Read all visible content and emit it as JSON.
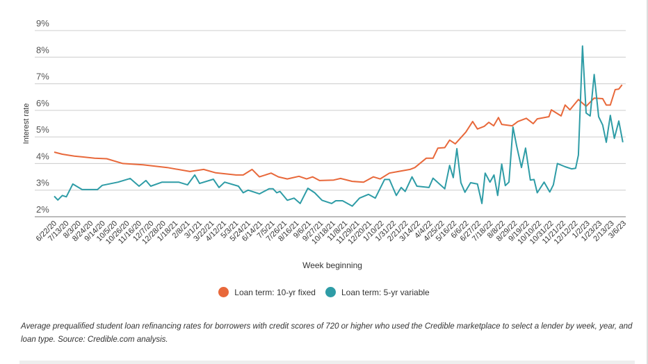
{
  "chart_data": {
    "type": "line",
    "title": "",
    "xlabel": "Week beginning",
    "ylabel": "Interest rate",
    "ylim": [
      2,
      9
    ],
    "y_ticks": [
      "2%",
      "3%",
      "4%",
      "5%",
      "6%",
      "7%",
      "8%",
      "9%"
    ],
    "grid": true,
    "legend_position": "bottom-center",
    "x_unit": "weeks since 6/22/20",
    "xlim": [
      0,
      141
    ],
    "x_tick_labels": [
      "6/22/20",
      "7/13/20",
      "8/3/20",
      "8/24/20",
      "9/14/20",
      "10/5/20",
      "10/26/20",
      "11/16/20",
      "12/7/20",
      "12/28/20",
      "1/18/21",
      "2/8/21",
      "3/1/21",
      "3/22/21",
      "4/12/21",
      "5/3/21",
      "5/24/21",
      "6/14/21",
      "7/5/21",
      "7/26/21",
      "8/16/21",
      "9/6/21",
      "9/27/21",
      "10/18/21",
      "11/8/21",
      "11/29/21",
      "12/20/21",
      "1/10/22",
      "1/31/22",
      "2/21/22",
      "3/14/22",
      "4/4/22",
      "4/25/22",
      "5/16/22",
      "6/6/22",
      "6/27/22",
      "7/18/22",
      "8/8/22",
      "8/29/22",
      "9/19/22",
      "10/10/22",
      "10/31/22",
      "11/21/22",
      "12/12/22",
      "1/2/23",
      "1/23/23",
      "2/13/23",
      "3/6/23"
    ],
    "series": [
      {
        "name": "Loan term: 10-yr fixed",
        "color": "#E8683A",
        "points": [
          [
            0,
            4.43
          ],
          [
            2,
            4.35
          ],
          [
            5,
            4.28
          ],
          [
            7,
            4.25
          ],
          [
            10,
            4.2
          ],
          [
            13,
            4.18
          ],
          [
            17,
            4.0
          ],
          [
            22,
            3.95
          ],
          [
            28,
            3.85
          ],
          [
            33.6,
            3.7
          ],
          [
            37,
            3.78
          ],
          [
            40,
            3.65
          ],
          [
            45,
            3.57
          ],
          [
            46.8,
            3.57
          ],
          [
            49,
            3.78
          ],
          [
            50.8,
            3.5
          ],
          [
            53.7,
            3.64
          ],
          [
            55.5,
            3.5
          ],
          [
            57.7,
            3.42
          ],
          [
            60.6,
            3.52
          ],
          [
            62.5,
            3.42
          ],
          [
            64,
            3.5
          ],
          [
            65.7,
            3.36
          ],
          [
            69.2,
            3.38
          ],
          [
            70.9,
            3.44
          ],
          [
            73.8,
            3.33
          ],
          [
            76.6,
            3.3
          ],
          [
            79,
            3.5
          ],
          [
            80.7,
            3.42
          ],
          [
            83,
            3.64
          ],
          [
            85.2,
            3.7
          ],
          [
            88.1,
            3.78
          ],
          [
            89.3,
            3.85
          ],
          [
            92.1,
            4.2
          ],
          [
            93.8,
            4.2
          ],
          [
            95,
            4.58
          ],
          [
            96.7,
            4.6
          ],
          [
            97.9,
            4.88
          ],
          [
            99.3,
            4.74
          ],
          [
            101.9,
            5.18
          ],
          [
            103.6,
            5.58
          ],
          [
            104.8,
            5.3
          ],
          [
            106.5,
            5.4
          ],
          [
            107.6,
            5.55
          ],
          [
            108.8,
            5.42
          ],
          [
            110,
            5.73
          ],
          [
            110.8,
            5.47
          ],
          [
            113.4,
            5.42
          ],
          [
            114.8,
            5.58
          ],
          [
            116.9,
            5.7
          ],
          [
            118.6,
            5.5
          ],
          [
            119.6,
            5.68
          ],
          [
            122.5,
            5.76
          ],
          [
            123.1,
            6.02
          ],
          [
            125.5,
            5.79
          ],
          [
            126.5,
            6.2
          ],
          [
            127.7,
            6.02
          ],
          [
            129.8,
            6.41
          ],
          [
            131.7,
            6.15
          ],
          [
            133.7,
            6.46
          ],
          [
            135.8,
            6.44
          ],
          [
            136.7,
            6.2
          ],
          [
            137.7,
            6.2
          ],
          [
            138.9,
            6.78
          ],
          [
            139.8,
            6.8
          ],
          [
            140.6,
            6.96
          ]
        ]
      },
      {
        "name": "Loan term: 5-yr variable",
        "color": "#2E9CA6",
        "points": [
          [
            0,
            2.77
          ],
          [
            0.9,
            2.63
          ],
          [
            2,
            2.8
          ],
          [
            3,
            2.75
          ],
          [
            4.6,
            3.23
          ],
          [
            6.9,
            3.02
          ],
          [
            10.7,
            3.02
          ],
          [
            11.9,
            3.18
          ],
          [
            15.8,
            3.3
          ],
          [
            18.8,
            3.44
          ],
          [
            21,
            3.15
          ],
          [
            22.7,
            3.36
          ],
          [
            23.9,
            3.15
          ],
          [
            26.7,
            3.3
          ],
          [
            30.8,
            3.3
          ],
          [
            33,
            3.2
          ],
          [
            34.8,
            3.57
          ],
          [
            36,
            3.25
          ],
          [
            39.4,
            3.41
          ],
          [
            40.8,
            3.1
          ],
          [
            42.2,
            3.3
          ],
          [
            45.6,
            3.15
          ],
          [
            46.8,
            2.9
          ],
          [
            48,
            3.0
          ],
          [
            50.8,
            2.86
          ],
          [
            53.2,
            3.05
          ],
          [
            54.2,
            3.05
          ],
          [
            55.1,
            2.9
          ],
          [
            55.9,
            2.95
          ],
          [
            57.7,
            2.62
          ],
          [
            59.4,
            2.7
          ],
          [
            60.9,
            2.5
          ],
          [
            62.8,
            3.07
          ],
          [
            64.5,
            2.9
          ],
          [
            66.3,
            2.62
          ],
          [
            68.7,
            2.5
          ],
          [
            69.7,
            2.6
          ],
          [
            71.4,
            2.6
          ],
          [
            73.8,
            2.4
          ],
          [
            75.6,
            2.7
          ],
          [
            77.8,
            2.84
          ],
          [
            79.5,
            2.7
          ],
          [
            81.8,
            3.4
          ],
          [
            83,
            3.4
          ],
          [
            84.7,
            2.8
          ],
          [
            85.9,
            3.1
          ],
          [
            86.9,
            2.95
          ],
          [
            88.6,
            3.5
          ],
          [
            89.8,
            3.15
          ],
          [
            92.8,
            3.1
          ],
          [
            93.8,
            3.45
          ],
          [
            96.7,
            3.05
          ],
          [
            97.9,
            3.93
          ],
          [
            98.8,
            3.47
          ],
          [
            99.7,
            4.56
          ],
          [
            100.7,
            3.28
          ],
          [
            101.7,
            2.92
          ],
          [
            103.1,
            3.28
          ],
          [
            104.8,
            3.23
          ],
          [
            105.9,
            2.5
          ],
          [
            106.7,
            3.64
          ],
          [
            107.9,
            3.3
          ],
          [
            108.9,
            3.57
          ],
          [
            109.8,
            2.8
          ],
          [
            110.8,
            3.98
          ],
          [
            111.7,
            3.17
          ],
          [
            112.6,
            3.3
          ],
          [
            113.6,
            5.37
          ],
          [
            114.5,
            4.66
          ],
          [
            115.7,
            3.85
          ],
          [
            116.7,
            4.58
          ],
          [
            117.9,
            3.38
          ],
          [
            118.8,
            3.4
          ],
          [
            119.6,
            2.9
          ],
          [
            121.3,
            3.3
          ],
          [
            122.7,
            2.93
          ],
          [
            123.6,
            3.2
          ],
          [
            124.6,
            4.0
          ],
          [
            126.5,
            3.88
          ],
          [
            128.1,
            3.8
          ],
          [
            129.1,
            3.82
          ],
          [
            129.8,
            4.32
          ],
          [
            130.8,
            8.42
          ],
          [
            131.7,
            5.9
          ],
          [
            132.7,
            5.79
          ],
          [
            133.7,
            7.35
          ],
          [
            134.8,
            5.76
          ],
          [
            135.8,
            5.45
          ],
          [
            136.7,
            4.8
          ],
          [
            137.7,
            5.81
          ],
          [
            138.7,
            4.95
          ],
          [
            139.8,
            5.6
          ],
          [
            140.8,
            4.8
          ]
        ]
      }
    ]
  },
  "caption": "Average prequalified student loan refinancing rates for borrowers with credit scores of 720 or higher who used the Credible marketplace to select a lender by week, year, and loan type. Source: Credible.com analysis."
}
